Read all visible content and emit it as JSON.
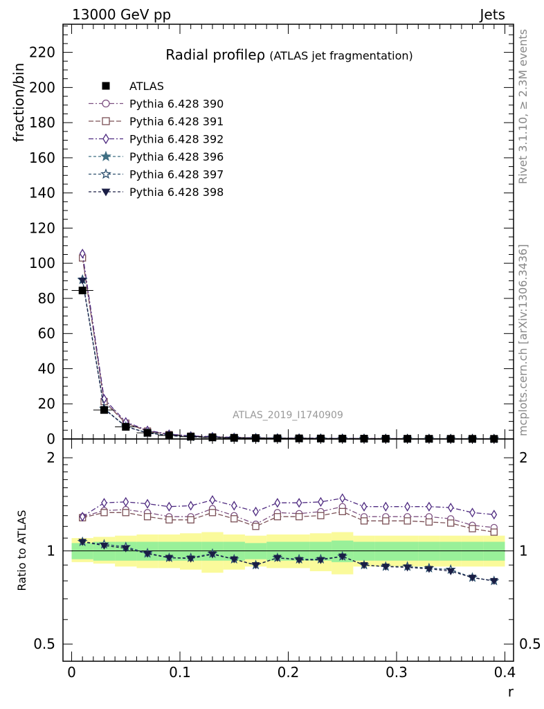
{
  "header": {
    "left": "13000 GeV pp",
    "right": "Jets"
  },
  "side_labels": {
    "rivet": "Rivet 3.1.10, ≥ 2.3M events",
    "mcplots": "mcplots.cern.ch [arXiv:1306.3436]"
  },
  "watermark": "ATLAS_2019_I1740909",
  "chart_data": [
    {
      "type": "line",
      "panel": "main",
      "title": "Radial profileρ",
      "subtitle": "(ATLAS jet fragmentation)",
      "ylabel": "fraction/bin",
      "ylim": [
        0,
        236
      ],
      "yticks": [
        0,
        20,
        40,
        60,
        80,
        100,
        120,
        140,
        160,
        180,
        200,
        220
      ],
      "yticklabels": [
        "0",
        "20",
        "40",
        "60",
        "80",
        "100",
        "120",
        "140",
        "160",
        "180",
        "200",
        "220"
      ],
      "xlim": [
        -0.008,
        0.408
      ],
      "x": [
        0.01,
        0.03,
        0.05,
        0.07,
        0.09,
        0.11,
        0.13,
        0.15,
        0.17,
        0.19,
        0.21,
        0.23,
        0.25,
        0.27,
        0.29,
        0.31,
        0.33,
        0.35,
        0.37,
        0.39
      ],
      "legend_position": "top-left",
      "series": [
        {
          "name": "ATLAS",
          "color": "#000000",
          "marker": "square-filled",
          "values": [
            84.5,
            16.5,
            6.9,
            3.5,
            2.0,
            1.3,
            0.9,
            0.65,
            0.5,
            0.4,
            0.33,
            0.27,
            0.22,
            0.18,
            0.15,
            0.13,
            0.11,
            0.09,
            0.08,
            0.07
          ]
        },
        {
          "name": "Pythia 6.428 390",
          "color": "#7c4f80",
          "marker": "circle-open",
          "dash": "7,3,2,3",
          "values": [
            103.5,
            21.5,
            9.1,
            4.6,
            2.55,
            1.66,
            1.2,
            0.84,
            0.61,
            0.52,
            0.43,
            0.35,
            0.3,
            0.23,
            0.19,
            0.165,
            0.14,
            0.113,
            0.096,
            0.082
          ]
        },
        {
          "name": "Pythia 6.428 391",
          "color": "#7a4f55",
          "marker": "square-open",
          "dash": "7,3",
          "values": [
            103.0,
            21.3,
            9.0,
            4.5,
            2.5,
            1.63,
            1.18,
            0.82,
            0.6,
            0.51,
            0.42,
            0.35,
            0.29,
            0.22,
            0.185,
            0.16,
            0.135,
            0.11,
            0.093,
            0.079
          ]
        },
        {
          "name": "Pythia 6.428 392",
          "color": "#4e2a80",
          "marker": "diamond-open",
          "dash": "7,3,2,3",
          "values": [
            105.5,
            22.8,
            9.7,
            4.9,
            2.7,
            1.76,
            1.3,
            0.9,
            0.65,
            0.56,
            0.46,
            0.38,
            0.32,
            0.245,
            0.2,
            0.175,
            0.148,
            0.12,
            0.1,
            0.086
          ]
        },
        {
          "name": "Pythia 6.428 396",
          "color": "#3f6f83",
          "marker": "star-filled",
          "dash": "4,3",
          "values": [
            90.8,
            17.3,
            7.1,
            3.45,
            1.92,
            1.25,
            0.88,
            0.62,
            0.46,
            0.38,
            0.31,
            0.25,
            0.215,
            0.165,
            0.135,
            0.115,
            0.095,
            0.078,
            0.066,
            0.057
          ]
        },
        {
          "name": "Pythia 6.428 397",
          "color": "#2d4f6e",
          "marker": "star-open",
          "dash": "4,3",
          "values": [
            90.5,
            17.2,
            7.1,
            3.45,
            1.9,
            1.24,
            0.88,
            0.62,
            0.45,
            0.38,
            0.31,
            0.25,
            0.214,
            0.164,
            0.134,
            0.114,
            0.094,
            0.078,
            0.066,
            0.056
          ]
        },
        {
          "name": "Pythia 6.428 398",
          "color": "#1a1e45",
          "marker": "triangle-down-filled",
          "dash": "4,3",
          "values": [
            90.2,
            17.1,
            7.0,
            3.43,
            1.89,
            1.23,
            0.87,
            0.61,
            0.45,
            0.37,
            0.31,
            0.25,
            0.213,
            0.163,
            0.133,
            0.113,
            0.093,
            0.077,
            0.065,
            0.056
          ]
        }
      ]
    },
    {
      "type": "line",
      "panel": "ratio",
      "ylabel": "Ratio to ATLAS",
      "xlabel": "r",
      "yscale": "log",
      "ylim": [
        0.44,
        2.3
      ],
      "yticks": [
        0.5,
        1,
        2
      ],
      "yticklabels": [
        "0.5",
        "1",
        "2"
      ],
      "xlim": [
        -0.008,
        0.408
      ],
      "xticks": [
        0,
        0.1,
        0.2,
        0.3,
        0.4
      ],
      "xticklabels": [
        "0",
        "0.1",
        "0.2",
        "0.3",
        "0.4"
      ],
      "x": [
        0.01,
        0.03,
        0.05,
        0.07,
        0.09,
        0.11,
        0.13,
        0.15,
        0.17,
        0.19,
        0.21,
        0.23,
        0.25,
        0.27,
        0.29,
        0.31,
        0.33,
        0.35,
        0.37,
        0.39
      ],
      "band_inner": [
        [
          0.94,
          1.06
        ],
        [
          0.93,
          1.07
        ],
        [
          0.93,
          1.07
        ],
        [
          0.93,
          1.07
        ],
        [
          0.93,
          1.07
        ],
        [
          0.93,
          1.07
        ],
        [
          0.93,
          1.07
        ],
        [
          0.93,
          1.07
        ],
        [
          0.94,
          1.06
        ],
        [
          0.93,
          1.07
        ],
        [
          0.93,
          1.07
        ],
        [
          0.93,
          1.07
        ],
        [
          0.92,
          1.08
        ],
        [
          0.93,
          1.07
        ],
        [
          0.93,
          1.07
        ],
        [
          0.93,
          1.07
        ],
        [
          0.93,
          1.07
        ],
        [
          0.93,
          1.07
        ],
        [
          0.93,
          1.07
        ],
        [
          0.93,
          1.07
        ]
      ],
      "band_outer": [
        [
          0.92,
          1.1
        ],
        [
          0.91,
          1.11
        ],
        [
          0.89,
          1.12
        ],
        [
          0.88,
          1.13
        ],
        [
          0.88,
          1.13
        ],
        [
          0.87,
          1.14
        ],
        [
          0.85,
          1.15
        ],
        [
          0.87,
          1.13
        ],
        [
          0.89,
          1.12
        ],
        [
          0.88,
          1.13
        ],
        [
          0.88,
          1.13
        ],
        [
          0.86,
          1.14
        ],
        [
          0.84,
          1.15
        ],
        [
          0.89,
          1.12
        ],
        [
          0.89,
          1.12
        ],
        [
          0.89,
          1.12
        ],
        [
          0.89,
          1.12
        ],
        [
          0.89,
          1.12
        ],
        [
          0.89,
          1.12
        ],
        [
          0.89,
          1.12
        ]
      ],
      "band_inner_color": "#99f099",
      "band_outer_color": "#fafa9b",
      "series": [
        {
          "name": "Pythia 6.428 390",
          "color": "#7c4f80",
          "marker": "circle-open",
          "dash": "7,3,2,3",
          "values": [
            1.29,
            1.35,
            1.36,
            1.33,
            1.29,
            1.29,
            1.37,
            1.3,
            1.22,
            1.33,
            1.32,
            1.34,
            1.39,
            1.29,
            1.29,
            1.29,
            1.29,
            1.27,
            1.21,
            1.19
          ]
        },
        {
          "name": "Pythia 6.428 391",
          "color": "#7a4f55",
          "marker": "square-open",
          "dash": "7,3",
          "values": [
            1.28,
            1.33,
            1.33,
            1.29,
            1.26,
            1.26,
            1.33,
            1.27,
            1.2,
            1.29,
            1.29,
            1.3,
            1.34,
            1.25,
            1.25,
            1.25,
            1.24,
            1.23,
            1.18,
            1.15
          ]
        },
        {
          "name": "Pythia 6.428 392",
          "color": "#4e2a80",
          "marker": "diamond-open",
          "dash": "7,3,2,3",
          "values": [
            1.29,
            1.43,
            1.44,
            1.42,
            1.39,
            1.4,
            1.46,
            1.4,
            1.34,
            1.43,
            1.43,
            1.44,
            1.48,
            1.39,
            1.39,
            1.39,
            1.39,
            1.38,
            1.33,
            1.31
          ]
        },
        {
          "name": "Pythia 6.428 396",
          "color": "#3f6f83",
          "marker": "star-filled",
          "dash": "4,3",
          "values": [
            1.07,
            1.05,
            1.03,
            0.98,
            0.95,
            0.95,
            0.98,
            0.94,
            0.9,
            0.95,
            0.94,
            0.94,
            0.96,
            0.9,
            0.89,
            0.89,
            0.88,
            0.87,
            0.82,
            0.8
          ]
        },
        {
          "name": "Pythia 6.428 397",
          "color": "#2d4f6e",
          "marker": "star-open",
          "dash": "4,3",
          "values": [
            1.07,
            1.05,
            1.03,
            0.985,
            0.95,
            0.95,
            0.98,
            0.94,
            0.9,
            0.95,
            0.94,
            0.94,
            0.96,
            0.9,
            0.89,
            0.89,
            0.88,
            0.87,
            0.82,
            0.8
          ]
        },
        {
          "name": "Pythia 6.428 398",
          "color": "#1a1e45",
          "marker": "triangle-down-filled",
          "dash": "4,3",
          "values": [
            1.07,
            1.04,
            1.02,
            0.98,
            0.95,
            0.945,
            0.975,
            0.94,
            0.9,
            0.95,
            0.935,
            0.935,
            0.96,
            0.9,
            0.89,
            0.885,
            0.875,
            0.86,
            0.82,
            0.8
          ]
        }
      ]
    }
  ]
}
